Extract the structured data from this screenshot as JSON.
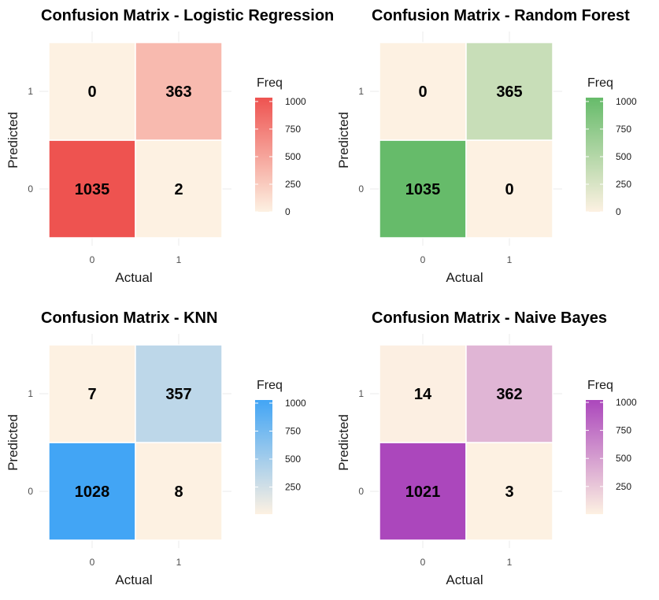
{
  "chart_data": [
    {
      "type": "heatmap",
      "title": "Confusion Matrix - Logistic Regression",
      "xlabel": "Actual",
      "ylabel": "Predicted",
      "x_categories": [
        "0",
        "1"
      ],
      "y_categories": [
        "0",
        "1"
      ],
      "cells": [
        {
          "actual": "0",
          "predicted": "0",
          "freq": 1035
        },
        {
          "actual": "1",
          "predicted": "0",
          "freq": 2
        },
        {
          "actual": "0",
          "predicted": "1",
          "freq": 0
        },
        {
          "actual": "1",
          "predicted": "1",
          "freq": 363
        }
      ],
      "legend": {
        "title": "Freq",
        "ticks": [
          0,
          250,
          500,
          750,
          1000
        ],
        "low_color": "#fdf1e2",
        "high_color": "#ee5350"
      },
      "scale_max": 1035,
      "legend_placement": "right",
      "grid": true
    },
    {
      "type": "heatmap",
      "title": "Confusion Matrix - Random Forest",
      "xlabel": "Actual",
      "ylabel": "Predicted",
      "x_categories": [
        "0",
        "1"
      ],
      "y_categories": [
        "0",
        "1"
      ],
      "cells": [
        {
          "actual": "0",
          "predicted": "0",
          "freq": 1035
        },
        {
          "actual": "1",
          "predicted": "0",
          "freq": 0
        },
        {
          "actual": "0",
          "predicted": "1",
          "freq": 0
        },
        {
          "actual": "1",
          "predicted": "1",
          "freq": 365
        }
      ],
      "legend": {
        "title": "Freq",
        "ticks": [
          0,
          250,
          500,
          750,
          1000
        ],
        "low_color": "#fdf1e2",
        "high_color": "#66bb6a"
      },
      "scale_max": 1035,
      "legend_placement": "right",
      "grid": true
    },
    {
      "type": "heatmap",
      "title": "Confusion Matrix - KNN",
      "xlabel": "Actual",
      "ylabel": "Predicted",
      "x_categories": [
        "0",
        "1"
      ],
      "y_categories": [
        "0",
        "1"
      ],
      "cells": [
        {
          "actual": "0",
          "predicted": "0",
          "freq": 1028
        },
        {
          "actual": "1",
          "predicted": "0",
          "freq": 8
        },
        {
          "actual": "0",
          "predicted": "1",
          "freq": 7
        },
        {
          "actual": "1",
          "predicted": "1",
          "freq": 357
        }
      ],
      "legend": {
        "title": "Freq",
        "ticks": [
          250,
          500,
          750,
          1000
        ],
        "low_color": "#fdf1e2",
        "high_color": "#42a5f5"
      },
      "scale_min": 7,
      "scale_max": 1028,
      "legend_placement": "right",
      "grid": true
    },
    {
      "type": "heatmap",
      "title": "Confusion Matrix - Naive Bayes",
      "xlabel": "Actual",
      "ylabel": "Predicted",
      "x_categories": [
        "0",
        "1"
      ],
      "y_categories": [
        "0",
        "1"
      ],
      "cells": [
        {
          "actual": "0",
          "predicted": "0",
          "freq": 1021
        },
        {
          "actual": "1",
          "predicted": "0",
          "freq": 3
        },
        {
          "actual": "0",
          "predicted": "1",
          "freq": 14
        },
        {
          "actual": "1",
          "predicted": "1",
          "freq": 362
        }
      ],
      "legend": {
        "title": "Freq",
        "ticks": [
          250,
          500,
          750,
          1000
        ],
        "low_color": "#fdf1e2",
        "high_color": "#ab47bc"
      },
      "scale_min": 3,
      "scale_max": 1021,
      "legend_placement": "right",
      "grid": true
    }
  ]
}
